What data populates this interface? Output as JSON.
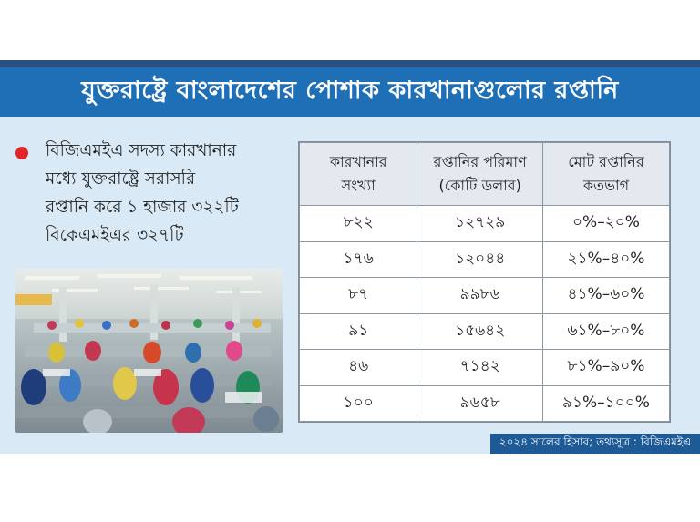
{
  "header": {
    "title": "যুক্তরাষ্ট্রে বাংলাদেশের পোশাক কারখানাগুলোর রপ্তানি"
  },
  "bullet": {
    "lines": [
      "বিজিএমইএ সদস্য কারখানার",
      "মধ্যে যুক্তরাষ্ট্রে সরাসরি",
      "রপ্তানি করে ১ হাজার ৩২২টি",
      "বিকেএমইএর ৩২৭টি"
    ]
  },
  "table": {
    "headers": [
      [
        "কারখানার",
        "সংখ্যা"
      ],
      [
        "রপ্তানির পরিমাণ",
        "(কোটি ডলার)"
      ],
      [
        "মোট রপ্তানির",
        "কতভাগ"
      ]
    ],
    "rows": [
      [
        "৮২২",
        "১২৭২৯",
        "০%–২০%"
      ],
      [
        "১৭৬",
        "১২০৪৪",
        "২১%–৪০%"
      ],
      [
        "৮৭",
        "৯৯৮৬",
        "৪১%–৬০%"
      ],
      [
        "৯১",
        "১৫৬৪২",
        "৬১%–৮০%"
      ],
      [
        "৪৬",
        "৭১৪২",
        "৮১%–৯০%"
      ],
      [
        "১০০",
        "৯৬৫৮",
        "৯১%–১০০%"
      ]
    ]
  },
  "source": {
    "text": "২০২৪ সালের হিসাব; তথ্যসূত্র : বিজিএমইএ"
  },
  "colors": {
    "header_bg": "#1f6fb7",
    "card_bg": "#d9e9f6",
    "bullet": "#e0262a",
    "source_bg": "#1e5a96"
  }
}
